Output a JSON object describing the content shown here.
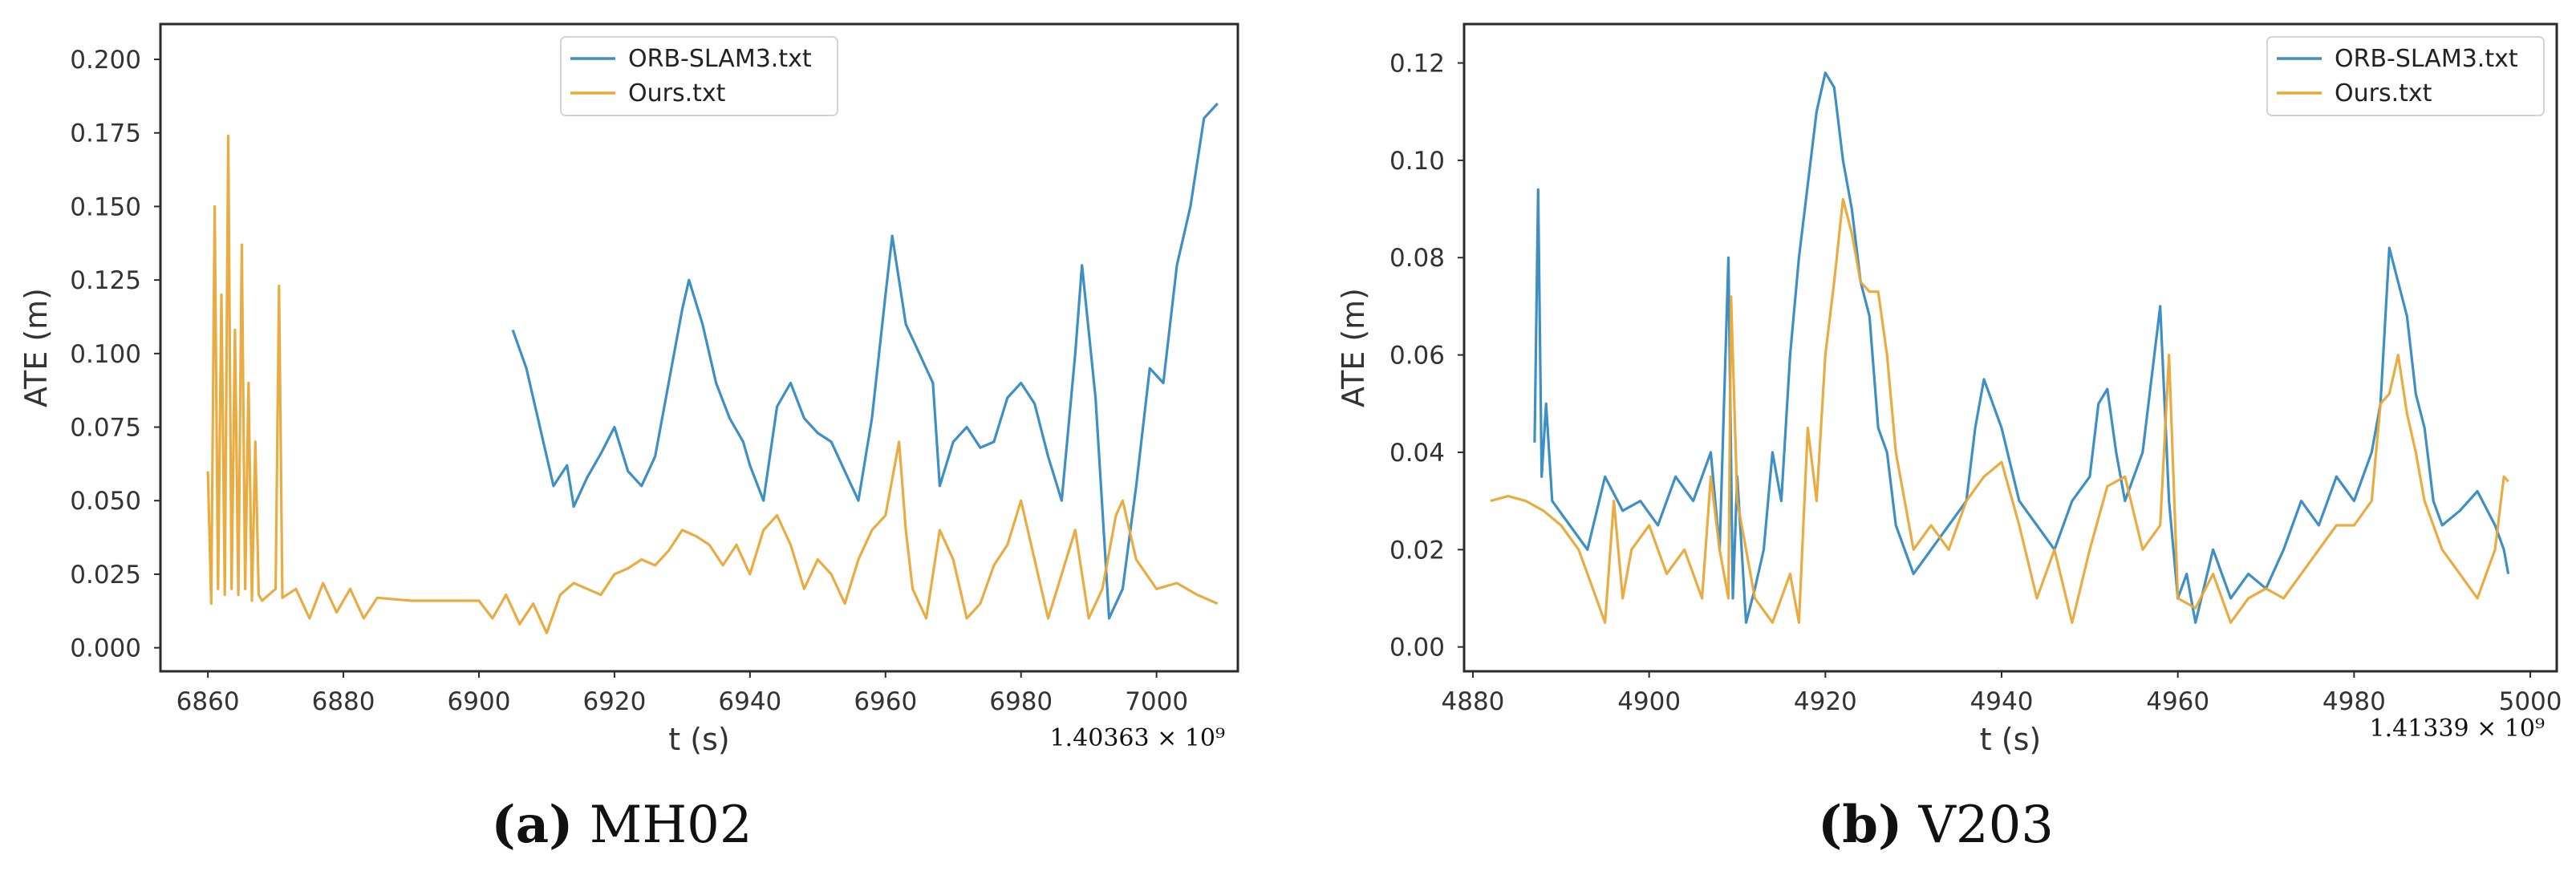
{
  "chart_data": [
    {
      "type": "line",
      "panel_letter": "(a)",
      "caption": "MH02",
      "xlabel": "t (s)",
      "ylabel": "ATE (m)",
      "x_offset_label": "1.40363 × 10⁹",
      "xlim": [
        6853,
        7012
      ],
      "ylim": [
        -0.008,
        0.212
      ],
      "xticks": [
        6860,
        6880,
        6900,
        6920,
        6940,
        6960,
        6980,
        7000
      ],
      "xtick_labels": [
        "6860",
        "6880",
        "6900",
        "6920",
        "6940",
        "6960",
        "6980",
        "7000"
      ],
      "yticks": [
        0.0,
        0.025,
        0.05,
        0.075,
        0.1,
        0.125,
        0.15,
        0.175,
        0.2
      ],
      "ytick_labels": [
        "0.000",
        "0.025",
        "0.050",
        "0.075",
        "0.100",
        "0.125",
        "0.150",
        "0.175",
        "0.200"
      ],
      "grid": false,
      "legend_position": "top-center",
      "series": [
        {
          "name": "ORB-SLAM3.txt",
          "color": "#3d8fc4",
          "x": [
            6905,
            6907,
            6909,
            6911,
            6913,
            6914,
            6916,
            6918,
            6920,
            6922,
            6924,
            6926,
            6928,
            6930,
            6931,
            6933,
            6935,
            6937,
            6939,
            6940,
            6942,
            6944,
            6946,
            6948,
            6950,
            6952,
            6954,
            6956,
            6958,
            6960,
            6961,
            6963,
            6965,
            6967,
            6968,
            6970,
            6972,
            6974,
            6976,
            6978,
            6980,
            6982,
            6984,
            6986,
            6988,
            6989,
            6991,
            6993,
            6995,
            6997,
            6999,
            7001,
            7003,
            7005,
            7007,
            7009
          ],
          "y": [
            0.108,
            0.095,
            0.075,
            0.055,
            0.062,
            0.048,
            0.058,
            0.066,
            0.075,
            0.06,
            0.055,
            0.065,
            0.09,
            0.115,
            0.125,
            0.11,
            0.09,
            0.078,
            0.07,
            0.062,
            0.05,
            0.082,
            0.09,
            0.078,
            0.073,
            0.07,
            0.06,
            0.05,
            0.078,
            0.12,
            0.14,
            0.11,
            0.1,
            0.09,
            0.055,
            0.07,
            0.075,
            0.068,
            0.07,
            0.085,
            0.09,
            0.083,
            0.065,
            0.05,
            0.1,
            0.13,
            0.085,
            0.01,
            0.02,
            0.055,
            0.095,
            0.09,
            0.13,
            0.15,
            0.18,
            0.185
          ]
        },
        {
          "name": "Ours.txt",
          "color": "#e8a838",
          "x": [
            6860,
            6860.5,
            6861,
            6861.5,
            6862,
            6862.5,
            6863,
            6863.5,
            6864,
            6864.5,
            6865,
            6865.5,
            6866,
            6866.5,
            6867,
            6867.5,
            6868,
            6869,
            6870,
            6870.5,
            6871,
            6873,
            6875,
            6877,
            6879,
            6881,
            6883,
            6885,
            6890,
            6895,
            6900,
            6902,
            6904,
            6906,
            6908,
            6910,
            6912,
            6914,
            6916,
            6918,
            6920,
            6922,
            6924,
            6926,
            6928,
            6930,
            6932,
            6934,
            6936,
            6938,
            6940,
            6942,
            6944,
            6946,
            6948,
            6950,
            6952,
            6954,
            6956,
            6958,
            6960,
            6962,
            6963,
            6964,
            6966,
            6968,
            6970,
            6972,
            6974,
            6976,
            6978,
            6980,
            6982,
            6984,
            6986,
            6988,
            6990,
            6992,
            6994,
            6995,
            6997,
            7000,
            7003,
            7006,
            7009
          ],
          "y": [
            0.06,
            0.015,
            0.15,
            0.02,
            0.12,
            0.018,
            0.174,
            0.02,
            0.108,
            0.018,
            0.137,
            0.02,
            0.09,
            0.016,
            0.07,
            0.018,
            0.016,
            0.018,
            0.02,
            0.123,
            0.017,
            0.02,
            0.01,
            0.022,
            0.012,
            0.02,
            0.01,
            0.017,
            0.016,
            0.016,
            0.016,
            0.01,
            0.018,
            0.008,
            0.015,
            0.005,
            0.018,
            0.022,
            0.02,
            0.018,
            0.025,
            0.027,
            0.03,
            0.028,
            0.033,
            0.04,
            0.038,
            0.035,
            0.028,
            0.035,
            0.025,
            0.04,
            0.045,
            0.035,
            0.02,
            0.03,
            0.025,
            0.015,
            0.03,
            0.04,
            0.045,
            0.07,
            0.04,
            0.02,
            0.01,
            0.04,
            0.03,
            0.01,
            0.015,
            0.028,
            0.035,
            0.05,
            0.03,
            0.01,
            0.025,
            0.04,
            0.01,
            0.02,
            0.045,
            0.05,
            0.03,
            0.02,
            0.022,
            0.018,
            0.015
          ]
        }
      ]
    },
    {
      "type": "line",
      "panel_letter": "(b)",
      "caption": "V203",
      "xlabel": "t (s)",
      "ylabel": "ATE (m)",
      "x_offset_label": "1.41339 × 10⁹",
      "xlim": [
        4879,
        5003
      ],
      "ylim": [
        -0.005,
        0.128
      ],
      "xticks": [
        4880,
        4900,
        4920,
        4940,
        4960,
        4980,
        5000
      ],
      "xtick_labels": [
        "4880",
        "4900",
        "4920",
        "4940",
        "4960",
        "4980",
        "5000"
      ],
      "yticks": [
        0.0,
        0.02,
        0.04,
        0.06,
        0.08,
        0.1,
        0.12
      ],
      "ytick_labels": [
        "0.00",
        "0.02",
        "0.04",
        "0.06",
        "0.08",
        "0.10",
        "0.12"
      ],
      "grid": false,
      "legend_position": "top-right",
      "series": [
        {
          "name": "ORB-SLAM3.txt",
          "color": "#3d8fc4",
          "x": [
            4887,
            4887.4,
            4887.8,
            4888.3,
            4889,
            4891,
            4893,
            4895,
            4897,
            4899,
            4901,
            4903,
            4905,
            4907,
            4908,
            4909,
            4909.5,
            4910,
            4911,
            4912,
            4913,
            4914,
            4915,
            4916,
            4917,
            4918,
            4919,
            4920,
            4921,
            4922,
            4923,
            4924,
            4925,
            4926,
            4927,
            4928,
            4929,
            4930,
            4932,
            4934,
            4936,
            4937,
            4938,
            4940,
            4942,
            4944,
            4946,
            4948,
            4950,
            4951,
            4952,
            4953,
            4954,
            4956,
            4958,
            4959,
            4960,
            4961,
            4962,
            4964,
            4966,
            4968,
            4970,
            4972,
            4974,
            4976,
            4978,
            4980,
            4982,
            4983,
            4984,
            4985,
            4986,
            4987,
            4988,
            4989,
            4990,
            4992,
            4994,
            4996,
            4997,
            4997.5
          ],
          "y": [
            0.042,
            0.094,
            0.035,
            0.05,
            0.03,
            0.025,
            0.02,
            0.035,
            0.028,
            0.03,
            0.025,
            0.035,
            0.03,
            0.04,
            0.02,
            0.08,
            0.01,
            0.035,
            0.005,
            0.012,
            0.02,
            0.04,
            0.03,
            0.06,
            0.08,
            0.095,
            0.11,
            0.118,
            0.115,
            0.1,
            0.09,
            0.075,
            0.068,
            0.045,
            0.04,
            0.025,
            0.02,
            0.015,
            0.02,
            0.025,
            0.03,
            0.045,
            0.055,
            0.045,
            0.03,
            0.025,
            0.02,
            0.03,
            0.035,
            0.05,
            0.053,
            0.04,
            0.03,
            0.04,
            0.07,
            0.03,
            0.01,
            0.015,
            0.005,
            0.02,
            0.01,
            0.015,
            0.012,
            0.02,
            0.03,
            0.025,
            0.035,
            0.03,
            0.04,
            0.05,
            0.082,
            0.075,
            0.068,
            0.052,
            0.045,
            0.03,
            0.025,
            0.028,
            0.032,
            0.025,
            0.02,
            0.015
          ]
        },
        {
          "name": "Ours.txt",
          "color": "#e8a838",
          "x": [
            4882,
            4884,
            4886,
            4888,
            4890,
            4892,
            4893,
            4894,
            4895,
            4896,
            4897,
            4898,
            4900,
            4902,
            4904,
            4906,
            4907,
            4908,
            4909,
            4909.3,
            4910,
            4911,
            4912,
            4914,
            4916,
            4917,
            4918,
            4919,
            4920,
            4921,
            4922,
            4923,
            4924,
            4925,
            4926,
            4927,
            4928,
            4930,
            4932,
            4934,
            4936,
            4938,
            4940,
            4942,
            4944,
            4946,
            4948,
            4950,
            4952,
            4954,
            4956,
            4958,
            4959,
            4960,
            4962,
            4964,
            4966,
            4968,
            4970,
            4972,
            4974,
            4976,
            4978,
            4980,
            4982,
            4983,
            4984,
            4985,
            4986,
            4987,
            4988,
            4990,
            4992,
            4994,
            4996,
            4997,
            4997.5
          ],
          "y": [
            0.03,
            0.031,
            0.03,
            0.028,
            0.025,
            0.02,
            0.015,
            0.01,
            0.005,
            0.03,
            0.01,
            0.02,
            0.025,
            0.015,
            0.02,
            0.01,
            0.035,
            0.02,
            0.01,
            0.072,
            0.03,
            0.02,
            0.01,
            0.005,
            0.015,
            0.005,
            0.045,
            0.03,
            0.06,
            0.075,
            0.092,
            0.085,
            0.075,
            0.073,
            0.073,
            0.06,
            0.04,
            0.02,
            0.025,
            0.02,
            0.03,
            0.035,
            0.038,
            0.025,
            0.01,
            0.02,
            0.005,
            0.02,
            0.033,
            0.035,
            0.02,
            0.025,
            0.06,
            0.01,
            0.008,
            0.015,
            0.005,
            0.01,
            0.012,
            0.01,
            0.015,
            0.02,
            0.025,
            0.025,
            0.03,
            0.05,
            0.052,
            0.06,
            0.048,
            0.04,
            0.03,
            0.02,
            0.015,
            0.01,
            0.02,
            0.035,
            0.034
          ]
        }
      ]
    }
  ]
}
